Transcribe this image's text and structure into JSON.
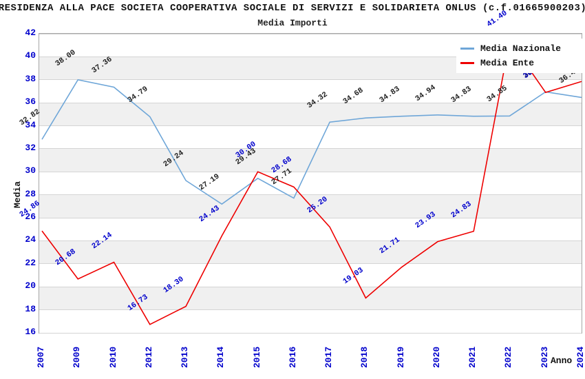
{
  "chart_data": {
    "type": "line",
    "title": "RESIDENZA ALLA PACE SOCIETA COOPERATIVA SOCIALE DI SERVIZI E SOLIDARIETA ONLUS (c.f.01665900203)",
    "subtitle": "Media Importi",
    "xlabel": "Anno",
    "ylabel": "Media",
    "categories": [
      "2007",
      "2009",
      "2010",
      "2012",
      "2013",
      "2014",
      "2015",
      "2016",
      "2017",
      "2018",
      "2019",
      "2020",
      "2021",
      "2022",
      "2023",
      "2024"
    ],
    "series": [
      {
        "name": "Media Nazionale",
        "color": "#6ea6d8",
        "label_color": "#222222",
        "values": [
          32.82,
          38.0,
          37.36,
          34.79,
          29.24,
          27.19,
          29.43,
          27.71,
          34.32,
          34.68,
          34.83,
          34.94,
          34.83,
          34.85,
          36.95,
          36.46
        ]
      },
      {
        "name": "Media Ente",
        "color": "#ee0000",
        "label_color": "#0000cc",
        "values": [
          24.86,
          20.68,
          22.14,
          16.73,
          18.3,
          24.43,
          30.0,
          28.68,
          25.2,
          19.03,
          21.71,
          23.93,
          24.83,
          41.4,
          36.9,
          37.85
        ]
      }
    ],
    "ylim": [
      16,
      42
    ],
    "yticks": [
      16,
      18,
      20,
      22,
      24,
      26,
      28,
      30,
      32,
      34,
      36,
      38,
      40,
      42
    ],
    "grid": "horizontal",
    "legend_position": "top-right",
    "band_color": "#f0f0f0",
    "axis_tick_color": "#0000cc",
    "label_format_decimals": 2
  }
}
